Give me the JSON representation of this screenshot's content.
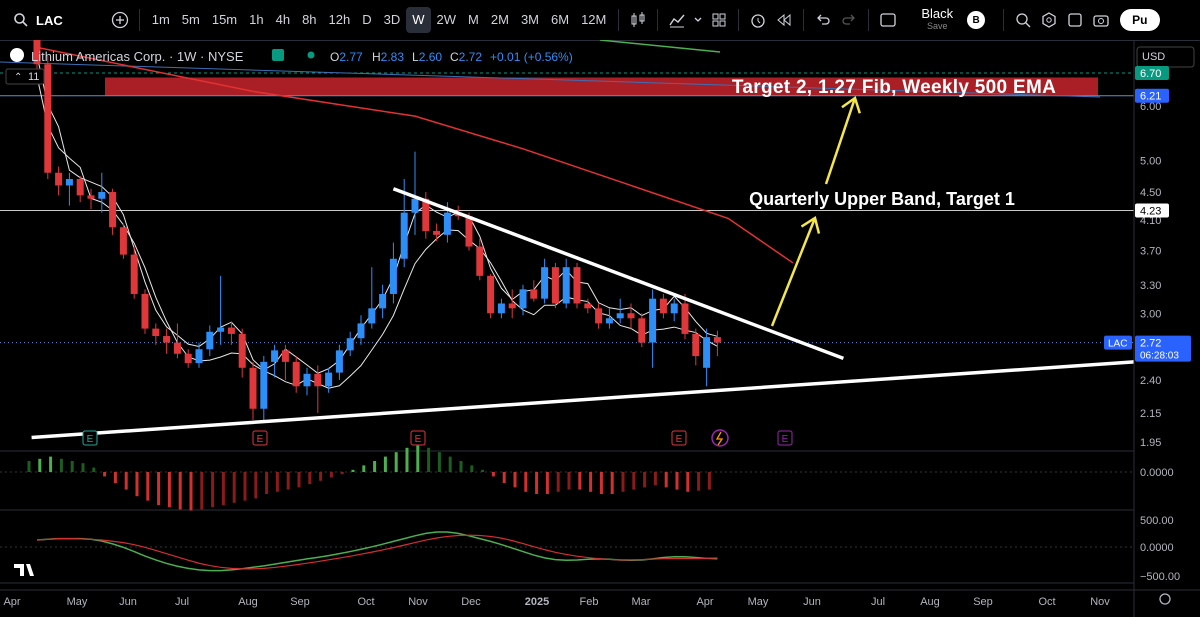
{
  "toolbar": {
    "symbol": "LAC",
    "timeframes": [
      "1m",
      "5m",
      "15m",
      "1h",
      "4h",
      "8h",
      "12h",
      "D",
      "3D",
      "W",
      "2W",
      "M",
      "2M",
      "3M",
      "6M",
      "12M"
    ],
    "active_timeframe": "W",
    "layout_name": "Black",
    "layout_sub": "Save",
    "avatar_letter": "B",
    "publish_label": "Pu"
  },
  "legend": {
    "title": "Lithium Americas Corp. · 1W · NYSE",
    "o_label": "O",
    "o": "2.77",
    "h_label": "H",
    "h": "2.83",
    "l_label": "L",
    "l": "2.60",
    "c_label": "C",
    "c": "2.72",
    "change": "+0.01 (+0.56%)",
    "indicator_count": "11"
  },
  "price_axis": {
    "currency": "USD",
    "ticks": [
      "6.00",
      "5.00",
      "4.50",
      "4.10",
      "3.70",
      "3.30",
      "3.00",
      "2.40",
      "2.15",
      "1.95"
    ],
    "badges": [
      {
        "value": "6.70",
        "color": "#089981"
      },
      {
        "value": "6.21",
        "color": "#2962ff"
      },
      {
        "value": "4.23",
        "color": "#ffffff"
      }
    ],
    "last_price": {
      "symbol": "LAC",
      "value": "2.72",
      "countdown": "06:28:03",
      "color": "#2962ff"
    },
    "osc1_ticks": [
      "0.0000"
    ],
    "osc2_ticks": [
      "500.00",
      "0.0000",
      "−500.00"
    ]
  },
  "time_axis": [
    "Apr",
    "May",
    "Jun",
    "Jul",
    "Aug",
    "Sep",
    "Oct",
    "Nov",
    "Dec",
    "2025",
    "Feb",
    "Mar",
    "Apr",
    "May",
    "Jun",
    "Jul",
    "Aug",
    "Sep",
    "Oct",
    "Nov"
  ],
  "annotations": {
    "target2": "Target 2, 1.27 Fib, Weekly 500 EMA",
    "target1": "Quarterly Upper Band, Target 1",
    "earnings_marker": "E"
  },
  "colors": {
    "up": "#2e8ef7",
    "down": "#e0373b",
    "ema": "#e23232",
    "trend": "#ffffff",
    "arrow": "#f5e64a",
    "zone": "#c8242c"
  },
  "chart_data": {
    "type": "candlestick",
    "title": "Lithium Americas Corp. · 1W · NYSE",
    "ylim": [
      1.9,
      7.0
    ],
    "scale": "log",
    "candles": [
      {
        "o": 7.8,
        "h": 8.5,
        "l": 6.6,
        "c": 6.9
      },
      {
        "o": 6.9,
        "h": 7.1,
        "l": 4.7,
        "c": 4.8
      },
      {
        "o": 4.8,
        "h": 4.9,
        "l": 4.45,
        "c": 4.6
      },
      {
        "o": 4.6,
        "h": 4.8,
        "l": 4.3,
        "c": 4.7
      },
      {
        "o": 4.7,
        "h": 4.75,
        "l": 4.35,
        "c": 4.45
      },
      {
        "o": 4.45,
        "h": 4.55,
        "l": 4.25,
        "c": 4.4
      },
      {
        "o": 4.4,
        "h": 4.8,
        "l": 4.2,
        "c": 4.5
      },
      {
        "o": 4.5,
        "h": 4.55,
        "l": 3.9,
        "c": 4.0
      },
      {
        "o": 4.0,
        "h": 4.05,
        "l": 3.6,
        "c": 3.65
      },
      {
        "o": 3.65,
        "h": 3.75,
        "l": 3.15,
        "c": 3.2
      },
      {
        "o": 3.2,
        "h": 3.25,
        "l": 2.8,
        "c": 2.85
      },
      {
        "o": 2.85,
        "h": 2.9,
        "l": 2.7,
        "c": 2.78
      },
      {
        "o": 2.78,
        "h": 2.85,
        "l": 2.62,
        "c": 2.72
      },
      {
        "o": 2.72,
        "h": 2.9,
        "l": 2.58,
        "c": 2.62
      },
      {
        "o": 2.62,
        "h": 2.66,
        "l": 2.5,
        "c": 2.54
      },
      {
        "o": 2.54,
        "h": 2.72,
        "l": 2.5,
        "c": 2.66
      },
      {
        "o": 2.66,
        "h": 2.88,
        "l": 2.6,
        "c": 2.82
      },
      {
        "o": 2.82,
        "h": 3.4,
        "l": 2.7,
        "c": 2.86
      },
      {
        "o": 2.86,
        "h": 2.92,
        "l": 2.7,
        "c": 2.8
      },
      {
        "o": 2.8,
        "h": 2.85,
        "l": 2.42,
        "c": 2.5
      },
      {
        "o": 2.5,
        "h": 2.55,
        "l": 2.1,
        "c": 2.18
      },
      {
        "o": 2.18,
        "h": 2.6,
        "l": 2.08,
        "c": 2.55
      },
      {
        "o": 2.55,
        "h": 2.7,
        "l": 2.42,
        "c": 2.65
      },
      {
        "o": 2.65,
        "h": 2.7,
        "l": 2.4,
        "c": 2.55
      },
      {
        "o": 2.55,
        "h": 2.6,
        "l": 2.3,
        "c": 2.35
      },
      {
        "o": 2.35,
        "h": 2.5,
        "l": 2.28,
        "c": 2.45
      },
      {
        "o": 2.45,
        "h": 2.52,
        "l": 2.15,
        "c": 2.35
      },
      {
        "o": 2.35,
        "h": 2.5,
        "l": 2.3,
        "c": 2.46
      },
      {
        "o": 2.46,
        "h": 2.7,
        "l": 2.4,
        "c": 2.65
      },
      {
        "o": 2.65,
        "h": 2.82,
        "l": 2.6,
        "c": 2.76
      },
      {
        "o": 2.76,
        "h": 2.98,
        "l": 2.7,
        "c": 2.9
      },
      {
        "o": 2.9,
        "h": 3.5,
        "l": 2.85,
        "c": 3.05
      },
      {
        "o": 3.05,
        "h": 3.3,
        "l": 2.95,
        "c": 3.2
      },
      {
        "o": 3.2,
        "h": 3.8,
        "l": 3.1,
        "c": 3.6
      },
      {
        "o": 3.6,
        "h": 4.7,
        "l": 3.5,
        "c": 4.2
      },
      {
        "o": 4.2,
        "h": 5.15,
        "l": 3.9,
        "c": 4.4
      },
      {
        "o": 4.4,
        "h": 4.5,
        "l": 3.85,
        "c": 3.95
      },
      {
        "o": 3.95,
        "h": 4.05,
        "l": 3.82,
        "c": 3.9
      },
      {
        "o": 3.9,
        "h": 4.35,
        "l": 3.8,
        "c": 4.2
      },
      {
        "o": 4.2,
        "h": 4.3,
        "l": 4.1,
        "c": 4.15
      },
      {
        "o": 4.15,
        "h": 4.2,
        "l": 3.7,
        "c": 3.75
      },
      {
        "o": 3.75,
        "h": 3.85,
        "l": 3.35,
        "c": 3.4
      },
      {
        "o": 3.4,
        "h": 3.42,
        "l": 2.95,
        "c": 3.0
      },
      {
        "o": 3.0,
        "h": 3.15,
        "l": 2.95,
        "c": 3.1
      },
      {
        "o": 3.1,
        "h": 3.25,
        "l": 2.95,
        "c": 3.05
      },
      {
        "o": 3.05,
        "h": 3.3,
        "l": 2.98,
        "c": 3.25
      },
      {
        "o": 3.25,
        "h": 3.35,
        "l": 3.12,
        "c": 3.15
      },
      {
        "o": 3.15,
        "h": 3.6,
        "l": 3.1,
        "c": 3.5
      },
      {
        "o": 3.5,
        "h": 3.55,
        "l": 3.05,
        "c": 3.1
      },
      {
        "o": 3.1,
        "h": 3.6,
        "l": 3.05,
        "c": 3.5
      },
      {
        "o": 3.5,
        "h": 3.55,
        "l": 3.05,
        "c": 3.1
      },
      {
        "o": 3.1,
        "h": 3.15,
        "l": 3.0,
        "c": 3.05
      },
      {
        "o": 3.05,
        "h": 3.1,
        "l": 2.85,
        "c": 2.9
      },
      {
        "o": 2.9,
        "h": 3.05,
        "l": 2.85,
        "c": 2.95
      },
      {
        "o": 2.95,
        "h": 3.15,
        "l": 2.9,
        "c": 3.0
      },
      {
        "o": 3.0,
        "h": 3.1,
        "l": 2.85,
        "c": 2.95
      },
      {
        "o": 2.95,
        "h": 3.0,
        "l": 2.68,
        "c": 2.72
      },
      {
        "o": 2.72,
        "h": 3.25,
        "l": 2.5,
        "c": 3.15
      },
      {
        "o": 3.15,
        "h": 3.2,
        "l": 2.95,
        "c": 3.0
      },
      {
        "o": 3.0,
        "h": 3.15,
        "l": 2.92,
        "c": 3.1
      },
      {
        "o": 3.1,
        "h": 3.2,
        "l": 2.75,
        "c": 2.8
      },
      {
        "o": 2.8,
        "h": 2.85,
        "l": 2.52,
        "c": 2.6
      },
      {
        "o": 2.5,
        "h": 2.85,
        "l": 2.35,
        "c": 2.77
      },
      {
        "o": 2.77,
        "h": 2.83,
        "l": 2.6,
        "c": 2.72
      }
    ],
    "ema_line": [
      [
        0,
        7.3
      ],
      [
        20,
        6.3
      ],
      [
        35,
        5.8
      ],
      [
        45,
        5.2
      ],
      [
        55,
        4.6
      ],
      [
        64,
        4.12
      ],
      [
        70,
        3.55
      ]
    ],
    "horizontal_levels": [
      4.23
    ],
    "target_zone": [
      6.21,
      6.6
    ],
    "support_trendline": [
      [
        -0.5,
        1.98
      ],
      [
        80,
        2.55
      ]
    ],
    "resistance_trendline": [
      [
        33,
        4.55
      ],
      [
        68,
        2.58
      ]
    ],
    "histogram": [
      0.5,
      0.6,
      0.7,
      0.6,
      0.5,
      0.4,
      0.2,
      -0.2,
      -0.5,
      -0.8,
      -1.1,
      -1.3,
      -1.5,
      -1.6,
      -1.7,
      -1.75,
      -1.7,
      -1.6,
      -1.5,
      -1.4,
      -1.3,
      -1.2,
      -1.0,
      -0.9,
      -0.8,
      -0.7,
      -0.55,
      -0.4,
      -0.25,
      -0.1,
      0.1,
      0.3,
      0.5,
      0.7,
      0.9,
      1.1,
      1.2,
      1.1,
      0.9,
      0.7,
      0.5,
      0.3,
      0.1,
      -0.2,
      -0.5,
      -0.7,
      -0.9,
      -1.0,
      -1.0,
      -0.9,
      -0.8,
      -0.8,
      -0.9,
      -1.0,
      -1.0,
      -0.9,
      -0.8,
      -0.7,
      -0.6,
      -0.7,
      -0.8,
      -0.9,
      -0.85,
      -0.8
    ],
    "time_labels": [
      "Apr",
      "May",
      "Jun",
      "Jul",
      "Aug",
      "Sep",
      "Oct",
      "Nov",
      "Dec",
      "2025",
      "Feb",
      "Mar",
      "Apr",
      "May",
      "Jun",
      "Jul",
      "Aug",
      "Sep",
      "Oct",
      "Nov"
    ]
  }
}
